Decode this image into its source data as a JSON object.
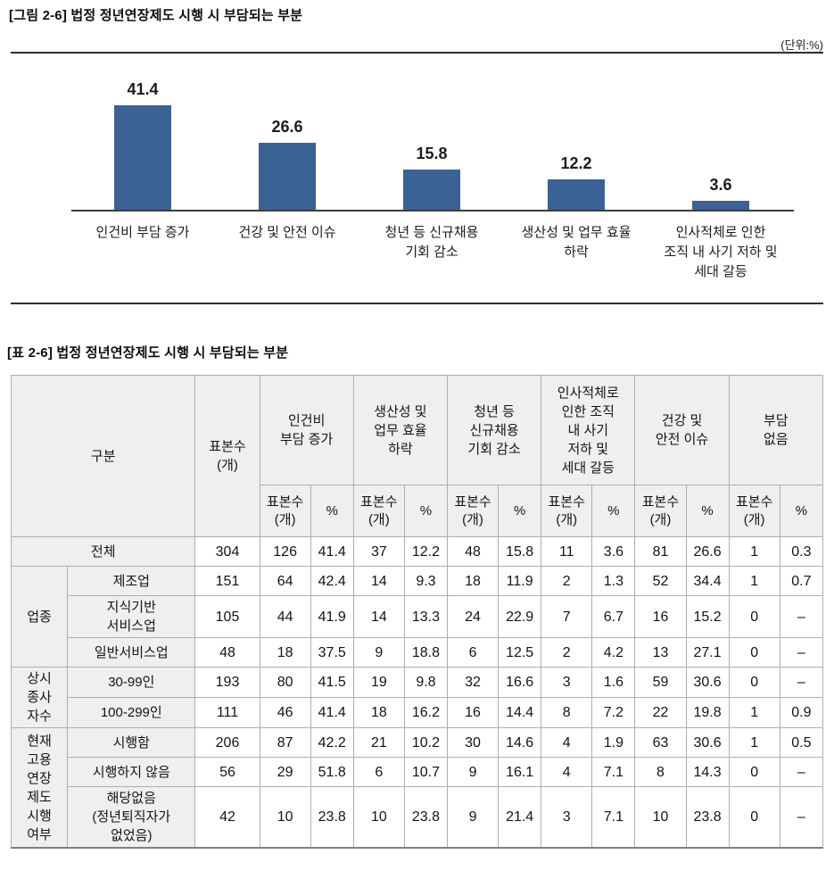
{
  "figure": {
    "title": "[그림 2-6] 법정 정년연장제도 시행 시 부담되는 부분",
    "unit_label": "(단위:%)",
    "chart_data": {
      "type": "bar",
      "categories": [
        "인건비 부담 증가",
        "건강 및 안전 이슈",
        "청년 등 신규채용\n기회 감소",
        "생산성 및 업무 효율\n하락",
        "인사적체로 인한\n조직 내 사기 저하 및\n세대 갈등"
      ],
      "values": [
        41.4,
        26.6,
        15.8,
        12.2,
        3.6
      ],
      "title": "",
      "xlabel": "",
      "ylabel": "",
      "ylim": [
        0,
        45
      ],
      "grid": false,
      "legend": false,
      "bar_color": "#3A6295",
      "axis_color": "#3c3c3c"
    }
  },
  "table": {
    "title": "[표 2-6] 법정 정년연장제도 시행 시 부담되는 부분",
    "corner_label": "구분",
    "sample_header": "표본수\n(개)",
    "sub_sample_header": "표본수\n(개)",
    "sub_percent_header": "%",
    "groups": [
      "인건비\n부담 증가",
      "생산성 및\n업무 효율\n하락",
      "청년 등\n신규채용\n기회 감소",
      "인사적체로\n인한 조직\n내 사기\n저하 및\n세대 갈등",
      "건강 및\n안전 이슈",
      "부담\n없음"
    ],
    "row_groups": [
      {
        "label": "",
        "rows": [
          {
            "label": "전체",
            "full": true,
            "values": [
              "304",
              "126",
              "41.4",
              "37",
              "12.2",
              "48",
              "15.8",
              "11",
              "3.6",
              "81",
              "26.6",
              "1",
              "0.3"
            ]
          }
        ]
      },
      {
        "label": "업종",
        "rows": [
          {
            "label": "제조업",
            "values": [
              "151",
              "64",
              "42.4",
              "14",
              "9.3",
              "18",
              "11.9",
              "2",
              "1.3",
              "52",
              "34.4",
              "1",
              "0.7"
            ]
          },
          {
            "label": "지식기반\n서비스업",
            "values": [
              "105",
              "44",
              "41.9",
              "14",
              "13.3",
              "24",
              "22.9",
              "7",
              "6.7",
              "16",
              "15.2",
              "0",
              "–"
            ]
          },
          {
            "label": "일반서비스업",
            "values": [
              "48",
              "18",
              "37.5",
              "9",
              "18.8",
              "6",
              "12.5",
              "2",
              "4.2",
              "13",
              "27.1",
              "0",
              "–"
            ]
          }
        ]
      },
      {
        "label": "상시\n종사\n자수",
        "rows": [
          {
            "label": "30-99인",
            "values": [
              "193",
              "80",
              "41.5",
              "19",
              "9.8",
              "32",
              "16.6",
              "3",
              "1.6",
              "59",
              "30.6",
              "0",
              "–"
            ]
          },
          {
            "label": "100-299인",
            "values": [
              "111",
              "46",
              "41.4",
              "18",
              "16.2",
              "16",
              "14.4",
              "8",
              "7.2",
              "22",
              "19.8",
              "1",
              "0.9"
            ]
          }
        ]
      },
      {
        "label": "현재\n고용\n연장\n제도\n시행\n여부",
        "rows": [
          {
            "label": "시행함",
            "values": [
              "206",
              "87",
              "42.2",
              "21",
              "10.2",
              "30",
              "14.6",
              "4",
              "1.9",
              "63",
              "30.6",
              "1",
              "0.5"
            ]
          },
          {
            "label": "시행하지 않음",
            "values": [
              "56",
              "29",
              "51.8",
              "6",
              "10.7",
              "9",
              "16.1",
              "4",
              "7.1",
              "8",
              "14.3",
              "0",
              "–"
            ]
          },
          {
            "label": "해당없음\n(정년퇴직자가\n없었음)",
            "values": [
              "42",
              "10",
              "23.8",
              "10",
              "23.8",
              "9",
              "21.4",
              "3",
              "7.1",
              "10",
              "23.8",
              "0",
              "–"
            ]
          }
        ]
      }
    ]
  }
}
